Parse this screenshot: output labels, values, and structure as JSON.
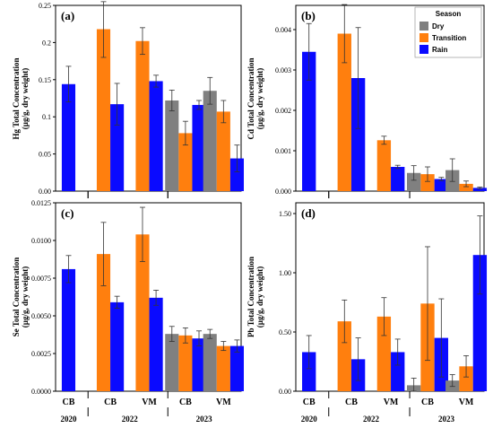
{
  "figure": {
    "colors": {
      "Dry": "#808080",
      "Transition": "#ff7f0e",
      "Rain": "#0a0aff"
    },
    "legend": {
      "title": "Season",
      "entries": [
        "Dry",
        "Transition",
        "Rain"
      ]
    },
    "x_categories": [
      "CB",
      "CB",
      "VM",
      "CB",
      "VM"
    ],
    "years": [
      "2020",
      "2022",
      "2023"
    ]
  },
  "chart_data": [
    {
      "type": "bar",
      "panel": "(a)",
      "ylabel_line1": "Hg  Total Concentration",
      "ylabel_line2": "(µg/g, dry weight)",
      "ylim": [
        0,
        0.25
      ],
      "yticks": [
        "0.00",
        "0.05",
        "0.1",
        "0.15",
        "0.2",
        "0.25"
      ],
      "ytick_values": [
        0,
        0.05,
        0.1,
        0.15,
        0.2,
        0.25
      ],
      "categories": [
        "CB 2020",
        "CB 2022",
        "VM 2022",
        "CB 2023",
        "VM 2023"
      ],
      "series": [
        {
          "name": "Dry",
          "values": [
            null,
            null,
            null,
            0.122,
            0.135
          ],
          "errors": [
            null,
            null,
            null,
            0.014,
            0.018
          ]
        },
        {
          "name": "Transition",
          "values": [
            null,
            0.218,
            0.202,
            0.078,
            0.107
          ],
          "errors": [
            null,
            0.038,
            0.018,
            0.016,
            0.015
          ]
        },
        {
          "name": "Rain",
          "values": [
            0.144,
            0.117,
            0.148,
            0.116,
            0.044
          ],
          "errors": [
            0.024,
            0.028,
            0.008,
            0.006,
            0.018
          ]
        }
      ]
    },
    {
      "type": "bar",
      "panel": "(b)",
      "ylabel_line1": "Cd  Total Concentration",
      "ylabel_line2": "(µg/g, dry weight)",
      "ylim": [
        0,
        0.0046
      ],
      "yticks": [
        "0.000",
        "0.001",
        "0.002",
        "0.003",
        "0.004"
      ],
      "ytick_values": [
        0,
        0.001,
        0.002,
        0.003,
        0.004
      ],
      "categories": [
        "CB 2020",
        "CB 2022",
        "VM 2022",
        "CB 2023",
        "VM 2023"
      ],
      "series": [
        {
          "name": "Dry",
          "values": [
            null,
            null,
            null,
            0.00045,
            0.00052
          ],
          "errors": [
            null,
            null,
            null,
            0.00018,
            0.00028
          ]
        },
        {
          "name": "Transition",
          "values": [
            null,
            0.0039,
            0.00126,
            0.00042,
            0.00018
          ],
          "errors": [
            null,
            0.00072,
            0.0001,
            0.00018,
            7e-05
          ]
        },
        {
          "name": "Rain",
          "values": [
            0.00345,
            0.0028,
            0.0006,
            0.0003,
            8e-05
          ],
          "errors": [
            0.0007,
            0.00125,
            4e-05,
            4e-05,
            2e-05
          ]
        }
      ]
    },
    {
      "type": "bar",
      "panel": "(c)",
      "ylabel_line1": "Se  Total Concentration",
      "ylabel_line2": "(µg/g, dry weight)",
      "ylim": [
        0,
        0.0125
      ],
      "yticks": [
        "0.0000",
        "0.0025",
        "0.0050",
        "0.0075",
        "0.0100",
        "0.0125"
      ],
      "ytick_values": [
        0,
        0.0025,
        0.005,
        0.0075,
        0.01,
        0.0125
      ],
      "categories": [
        "CB 2020",
        "CB 2022",
        "VM 2022",
        "CB 2023",
        "VM 2023"
      ],
      "series": [
        {
          "name": "Dry",
          "values": [
            null,
            null,
            null,
            0.0038,
            0.0038
          ],
          "errors": [
            null,
            null,
            null,
            0.0005,
            0.0003
          ]
        },
        {
          "name": "Transition",
          "values": [
            null,
            0.0091,
            0.0104,
            0.0037,
            0.003
          ],
          "errors": [
            null,
            0.0021,
            0.0018,
            0.0005,
            0.0003
          ]
        },
        {
          "name": "Rain",
          "values": [
            0.0081,
            0.0059,
            0.0062,
            0.0035,
            0.003
          ],
          "errors": [
            0.0009,
            0.0004,
            0.0005,
            0.0005,
            0.0004
          ]
        }
      ]
    },
    {
      "type": "bar",
      "panel": "(d)",
      "ylabel_line1": "Pb  Total Concentration",
      "ylabel_line2": "(µg/g, dry weight)",
      "ylim": [
        0,
        1.5
      ],
      "yticks": [
        "0.00",
        "0.50",
        "1.00",
        "1.50"
      ],
      "ytick_values": [
        0,
        0.5,
        1,
        1.5
      ],
      "categories": [
        "CB 2020",
        "CB 2022",
        "VM 2022",
        "CB 2023",
        "VM 2023"
      ],
      "series": [
        {
          "name": "Dry",
          "values": [
            null,
            null,
            null,
            0.05,
            0.09
          ],
          "errors": [
            null,
            null,
            null,
            0.06,
            0.05
          ]
        },
        {
          "name": "Transition",
          "values": [
            null,
            0.59,
            0.63,
            0.74,
            0.21
          ],
          "errors": [
            null,
            0.18,
            0.16,
            0.48,
            0.09
          ]
        },
        {
          "name": "Rain",
          "values": [
            0.33,
            0.27,
            0.33,
            0.45,
            1.15
          ],
          "errors": [
            0.14,
            0.18,
            0.11,
            0.33,
            0.33
          ]
        }
      ]
    }
  ]
}
